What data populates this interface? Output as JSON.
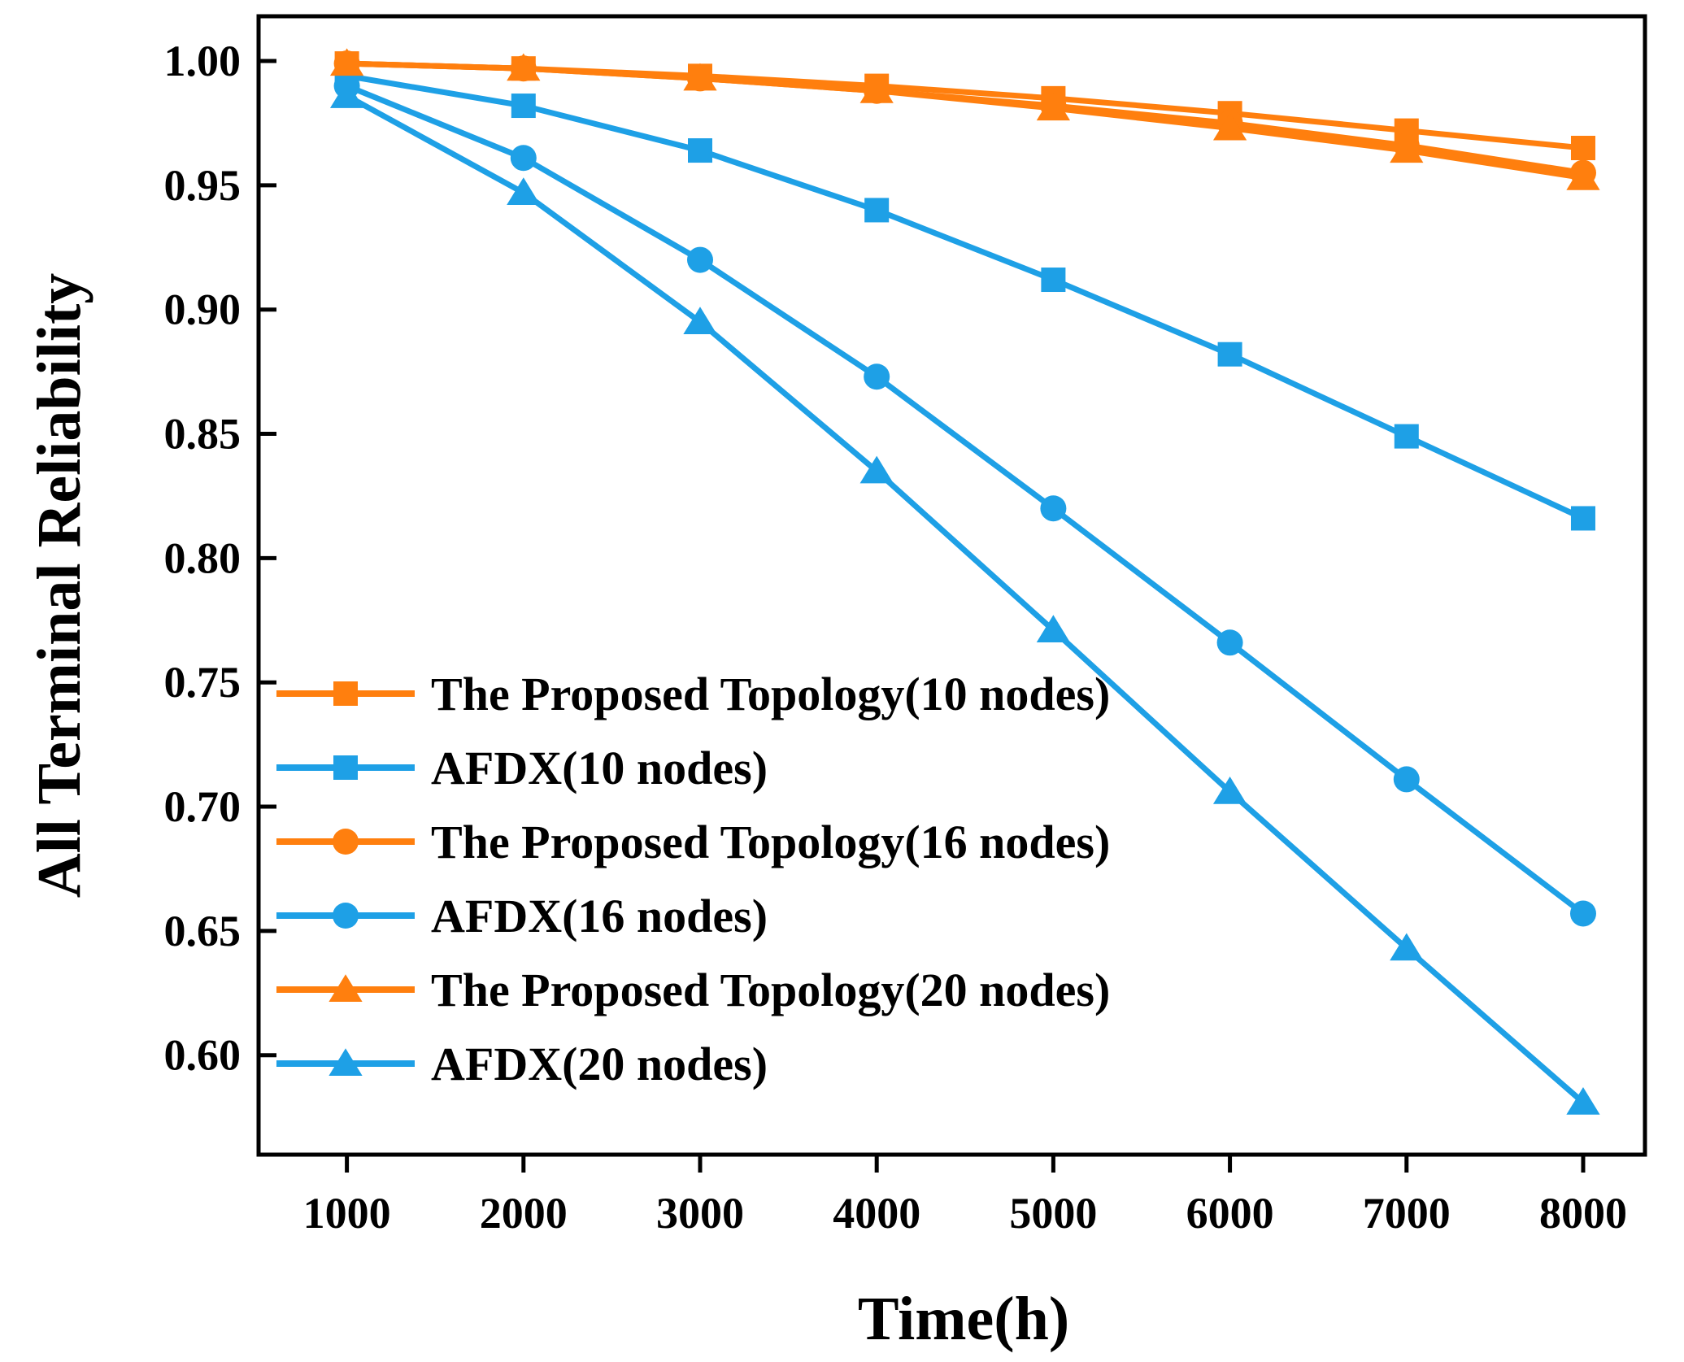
{
  "chart_data": {
    "type": "line",
    "title": "",
    "xlabel": "Time(h)",
    "ylabel": "All Terminal Reliability",
    "x": [
      1000,
      2000,
      3000,
      4000,
      5000,
      6000,
      7000,
      8000
    ],
    "xlim": [
      500,
      8350
    ],
    "ylim": [
      0.56,
      1.018
    ],
    "xticks": [
      1000,
      2000,
      3000,
      4000,
      5000,
      6000,
      7000,
      8000
    ],
    "yticks": [
      0.6,
      0.65,
      0.7,
      0.75,
      0.8,
      0.85,
      0.9,
      0.95,
      1.0
    ],
    "xtick_labels": [
      "1000",
      "2000",
      "3000",
      "4000",
      "5000",
      "6000",
      "7000",
      "8000"
    ],
    "ytick_labels": [
      "0.60",
      "0.65",
      "0.70",
      "0.75",
      "0.80",
      "0.85",
      "0.90",
      "0.95",
      "1.00"
    ],
    "grid": false,
    "legend_position": "bottom-left",
    "series": [
      {
        "name": "The Proposed Topology(10 nodes)",
        "color": "#ff7f0e",
        "marker": "square",
        "values": [
          0.999,
          0.997,
          0.994,
          0.99,
          0.985,
          0.979,
          0.972,
          0.965
        ]
      },
      {
        "name": "AFDX(10 nodes)",
        "color": "#1ea0e6",
        "marker": "square",
        "values": [
          0.994,
          0.982,
          0.964,
          0.94,
          0.912,
          0.882,
          0.849,
          0.816
        ]
      },
      {
        "name": "The Proposed Topology(16 nodes)",
        "color": "#ff7f0e",
        "marker": "circle",
        "values": [
          0.999,
          0.997,
          0.993,
          0.988,
          0.982,
          0.975,
          0.966,
          0.955
        ]
      },
      {
        "name": "AFDX(16 nodes)",
        "color": "#1ea0e6",
        "marker": "circle",
        "values": [
          0.99,
          0.961,
          0.92,
          0.873,
          0.82,
          0.766,
          0.711,
          0.657
        ]
      },
      {
        "name": "The Proposed Topology(20 nodes)",
        "color": "#ff7f0e",
        "marker": "triangle",
        "values": [
          0.999,
          0.997,
          0.993,
          0.988,
          0.981,
          0.973,
          0.964,
          0.953
        ]
      },
      {
        "name": "AFDX(20 nodes)",
        "color": "#1ea0e6",
        "marker": "triangle",
        "values": [
          0.986,
          0.947,
          0.895,
          0.835,
          0.771,
          0.706,
          0.643,
          0.581
        ]
      }
    ]
  }
}
